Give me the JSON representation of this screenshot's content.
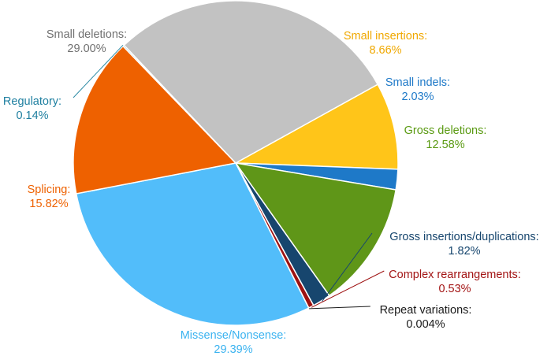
{
  "chart_data": {
    "type": "pie",
    "title": "",
    "slices": [
      {
        "label": "Small insertions:",
        "value_text": "8.66%",
        "value": 8.66,
        "color": "#FFC519",
        "label_color": "#F0A800"
      },
      {
        "label": "Small indels:",
        "value_text": "2.03%",
        "value": 2.03,
        "color": "#1E79C8",
        "label_color": "#1E79C8"
      },
      {
        "label": "Gross deletions:",
        "value_text": "12.58%",
        "value": 12.58,
        "color": "#5F9618",
        "label_color": "#5A9A12"
      },
      {
        "label": "Gross insertions/duplications:",
        "value_text": "1.82%",
        "value": 1.82,
        "color": "#17466E",
        "label_color": "#17466E"
      },
      {
        "label": "Complex rearrangements:",
        "value_text": "0.53%",
        "value": 0.53,
        "color": "#9E1212",
        "label_color": "#A31515"
      },
      {
        "label": "Repeat variations:",
        "value_text": "0.004%",
        "value": 0.004,
        "color": "#1A1A1A",
        "label_color": "#1A1A1A"
      },
      {
        "label": "Missense/Nonsense:",
        "value_text": "29.39%",
        "value": 29.39,
        "color": "#52BDFA",
        "label_color": "#3BB3F0"
      },
      {
        "label": "Splicing:",
        "value_text": "15.82%",
        "value": 15.82,
        "color": "#EE6100",
        "label_color": "#EE6100"
      },
      {
        "label": "Regulatory:",
        "value_text": "0.14%",
        "value": 0.14,
        "color": "#2E8BA5",
        "label_color": "#1E7FA0"
      },
      {
        "label": "Small deletions:",
        "value_text": "29.00%",
        "value": 29.0,
        "color": "#C2C2C2",
        "label_color": "#707070"
      }
    ]
  }
}
